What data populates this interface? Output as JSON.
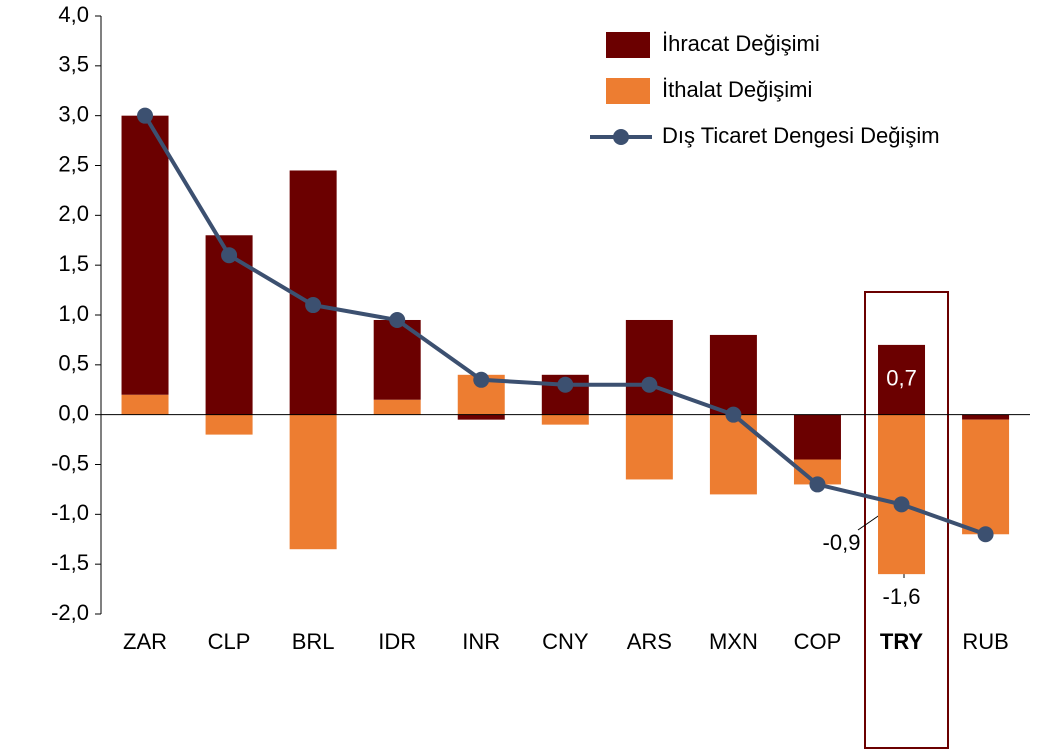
{
  "chart_data": {
    "type": "bar",
    "categories": [
      "ZAR",
      "CLP",
      "BRL",
      "IDR",
      "INR",
      "CNY",
      "ARS",
      "MXN",
      "COP",
      "TRY",
      "RUB"
    ],
    "series": [
      {
        "name": "İhracat Değişimi",
        "type": "bar",
        "color": "#6b0000",
        "values": [
          2.8,
          1.8,
          2.45,
          0.8,
          -0.05,
          0.4,
          0.95,
          0.8,
          -0.45,
          0.7,
          -0.05
        ],
        "value_labels": [
          null,
          null,
          null,
          null,
          null,
          null,
          null,
          null,
          null,
          "0,7",
          null
        ]
      },
      {
        "name": "İthalat Değişimi",
        "type": "bar",
        "color": "#ed7d31",
        "values": [
          0.2,
          -0.2,
          -1.35,
          0.15,
          0.4,
          -0.1,
          -0.65,
          -0.8,
          -0.25,
          -1.6,
          -1.15
        ],
        "value_labels": [
          null,
          null,
          null,
          null,
          null,
          null,
          null,
          null,
          null,
          "-1,6",
          null
        ]
      },
      {
        "name": "Dış Ticaret Dengesi Değişim",
        "type": "line",
        "color": "#3c5070",
        "values": [
          3.0,
          1.6,
          1.1,
          0.95,
          0.35,
          0.3,
          0.3,
          0.0,
          -0.7,
          -0.9,
          -1.2
        ],
        "value_labels": [
          null,
          null,
          null,
          null,
          null,
          null,
          null,
          null,
          null,
          "-0,9",
          null
        ]
      }
    ],
    "ylim": [
      -2.0,
      4.0
    ],
    "yticks": [
      {
        "value": -2.0,
        "label": "-2,0"
      },
      {
        "value": -1.5,
        "label": "-1,5"
      },
      {
        "value": -1.0,
        "label": "-1,0"
      },
      {
        "value": -0.5,
        "label": "-0,5"
      },
      {
        "value": 0.0,
        "label": "0,0"
      },
      {
        "value": 0.5,
        "label": "0,5"
      },
      {
        "value": 1.0,
        "label": "1,0"
      },
      {
        "value": 1.5,
        "label": "1,5"
      },
      {
        "value": 2.0,
        "label": "2,0"
      },
      {
        "value": 2.5,
        "label": "2,5"
      },
      {
        "value": 3.0,
        "label": "3,0"
      },
      {
        "value": 3.5,
        "label": "3,5"
      },
      {
        "value": 4.0,
        "label": "4,0"
      }
    ],
    "legend": "top-right"
  }
}
